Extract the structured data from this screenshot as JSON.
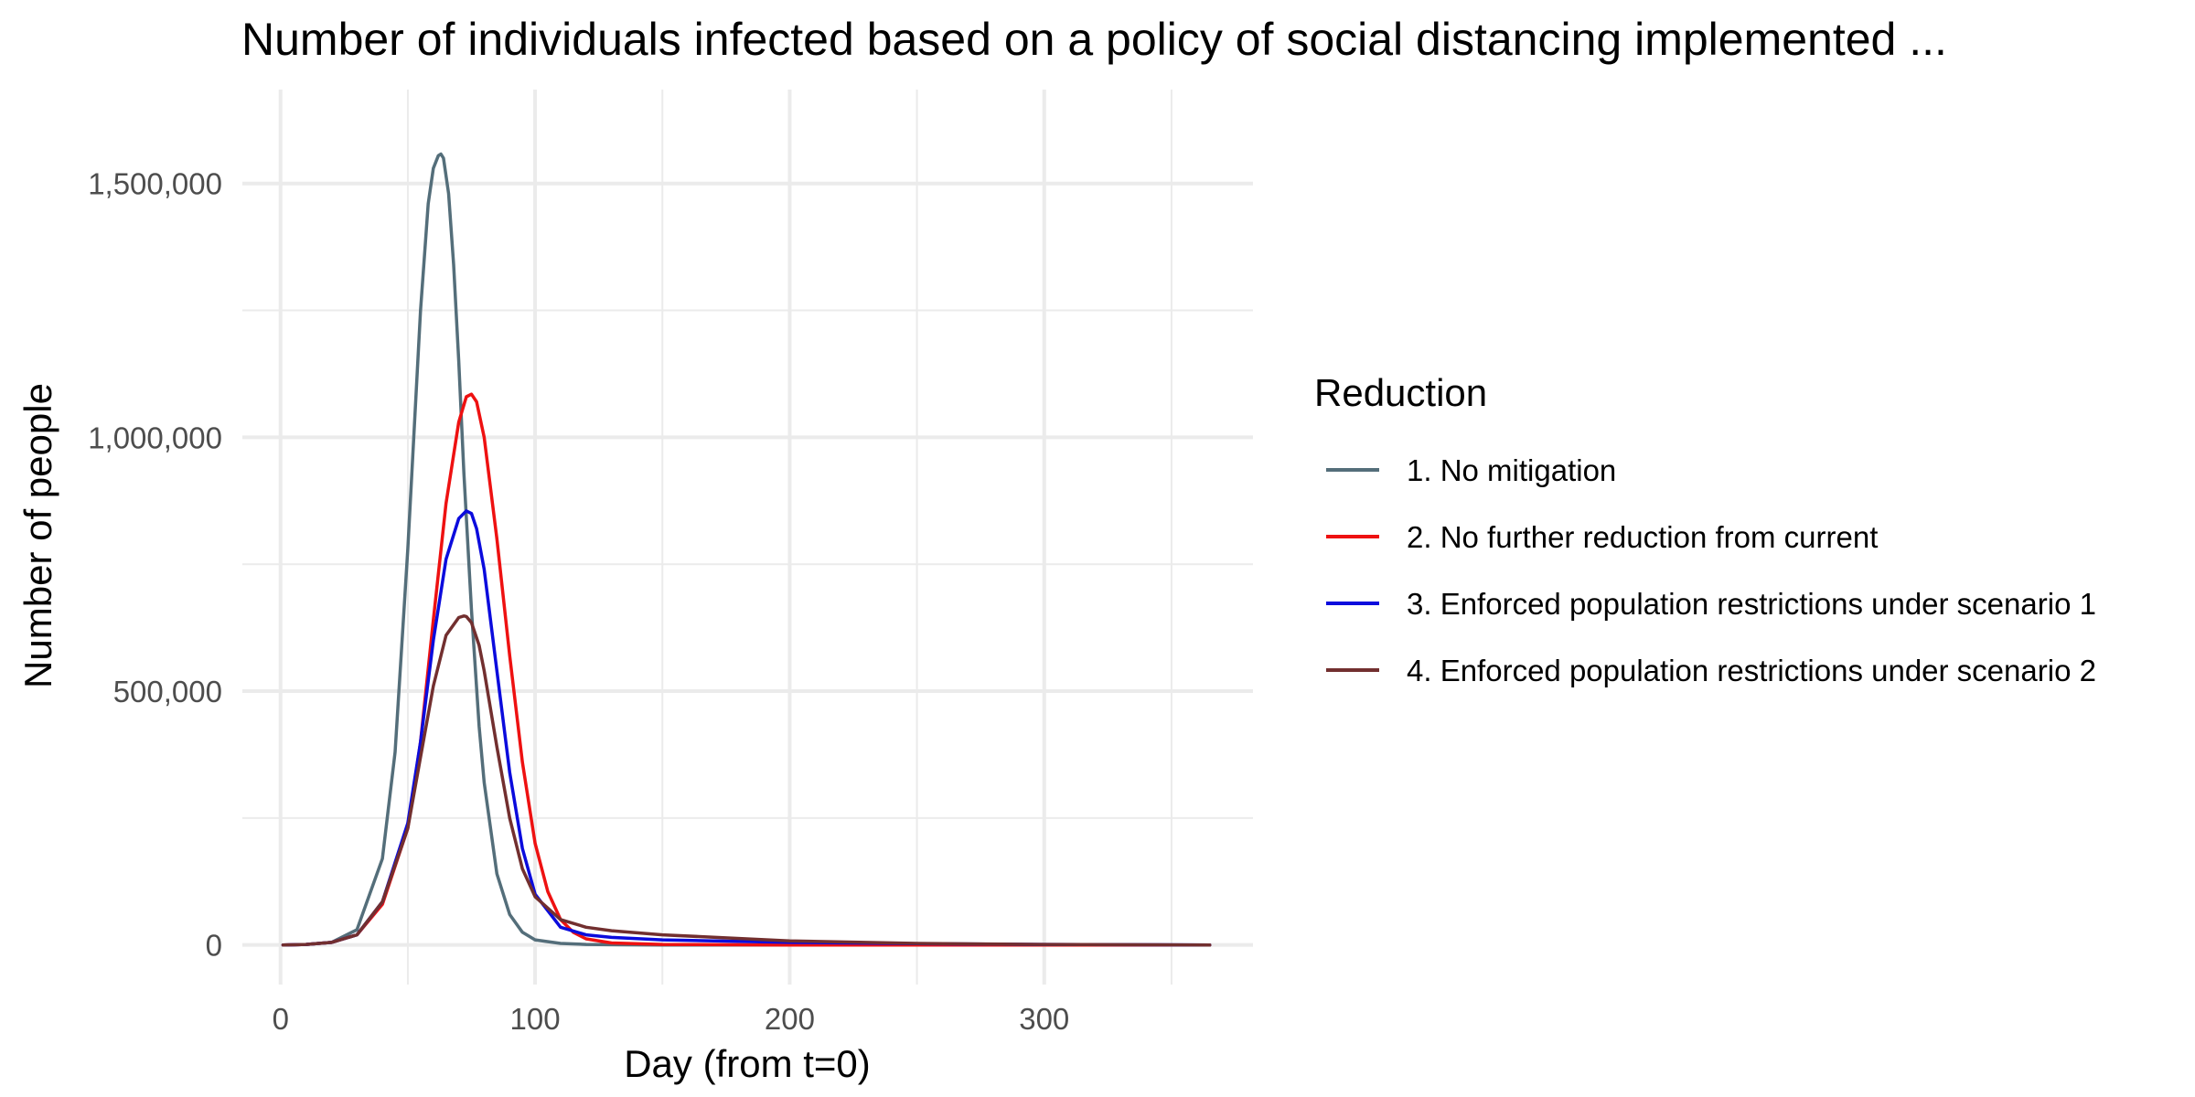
{
  "chart_data": {
    "type": "line",
    "title": "Number of individuals infected based on a policy of social distancing implemented ...",
    "xlabel": "Day (from t=0)",
    "ylabel": "Number of people",
    "xlim": [
      -15,
      382
    ],
    "ylim": [
      -78000,
      1685000
    ],
    "x_ticks": [
      0,
      100,
      200,
      300
    ],
    "x_tick_labels": [
      "0",
      "100",
      "200",
      "300"
    ],
    "x_minor_ticks": [
      50,
      150,
      250,
      350
    ],
    "y_ticks": [
      0,
      500000,
      1000000,
      1500000
    ],
    "y_tick_labels": [
      "0",
      "500,000",
      "1,000,000",
      "1,500,000"
    ],
    "y_minor_ticks": [
      250000,
      750000,
      1250000
    ],
    "grid": true,
    "legend": {
      "title": "Reduction",
      "position": "right"
    },
    "series": [
      {
        "name": "1. No mitigation",
        "color": "#546e7a",
        "x": [
          1,
          10,
          20,
          30,
          40,
          45,
          50,
          55,
          58,
          60,
          62,
          63,
          64,
          66,
          68,
          70,
          72,
          75,
          78,
          80,
          85,
          90,
          95,
          100,
          110,
          120,
          130,
          150,
          200,
          300,
          365
        ],
        "y": [
          0,
          1000,
          5000,
          30000,
          170000,
          380000,
          780000,
          1250000,
          1460000,
          1530000,
          1555000,
          1558000,
          1550000,
          1480000,
          1340000,
          1150000,
          930000,
          660000,
          430000,
          320000,
          140000,
          60000,
          25000,
          10000,
          3000,
          1000,
          500,
          0,
          0,
          0,
          0
        ]
      },
      {
        "name": "2. No further reduction from current",
        "color": "#ee1111",
        "x": [
          1,
          10,
          20,
          30,
          40,
          50,
          55,
          60,
          65,
          70,
          73,
          75,
          77,
          80,
          85,
          90,
          95,
          100,
          105,
          110,
          115,
          120,
          130,
          150,
          200,
          300,
          365
        ],
        "y": [
          0,
          1000,
          5000,
          20000,
          80000,
          230000,
          400000,
          640000,
          870000,
          1030000,
          1080000,
          1085000,
          1070000,
          1000000,
          800000,
          570000,
          360000,
          200000,
          105000,
          50000,
          25000,
          12000,
          4000,
          1000,
          0,
          0,
          0
        ]
      },
      {
        "name": "3. Enforced population restrictions under scenario 1",
        "color": "#0b0bdd",
        "x": [
          1,
          10,
          20,
          30,
          40,
          50,
          55,
          60,
          65,
          70,
          73,
          75,
          77,
          80,
          85,
          90,
          95,
          100,
          110,
          120,
          130,
          150,
          200,
          250,
          300,
          365
        ],
        "y": [
          0,
          1000,
          5000,
          20000,
          85000,
          240000,
          400000,
          600000,
          760000,
          840000,
          855000,
          850000,
          820000,
          740000,
          540000,
          340000,
          190000,
          100000,
          35000,
          20000,
          15000,
          10000,
          5000,
          2500,
          1000,
          0
        ]
      },
      {
        "name": "4. Enforced population restrictions under scenario 2",
        "color": "#722f2f",
        "x": [
          1,
          10,
          20,
          30,
          40,
          50,
          55,
          60,
          65,
          70,
          72,
          73,
          75,
          78,
          80,
          85,
          90,
          95,
          100,
          110,
          120,
          130,
          150,
          200,
          250,
          300,
          365
        ],
        "y": [
          0,
          1000,
          5000,
          20000,
          85000,
          230000,
          370000,
          510000,
          610000,
          645000,
          648000,
          647000,
          635000,
          590000,
          540000,
          390000,
          250000,
          150000,
          95000,
          50000,
          35000,
          28000,
          20000,
          8000,
          3000,
          1000,
          0
        ]
      }
    ]
  }
}
